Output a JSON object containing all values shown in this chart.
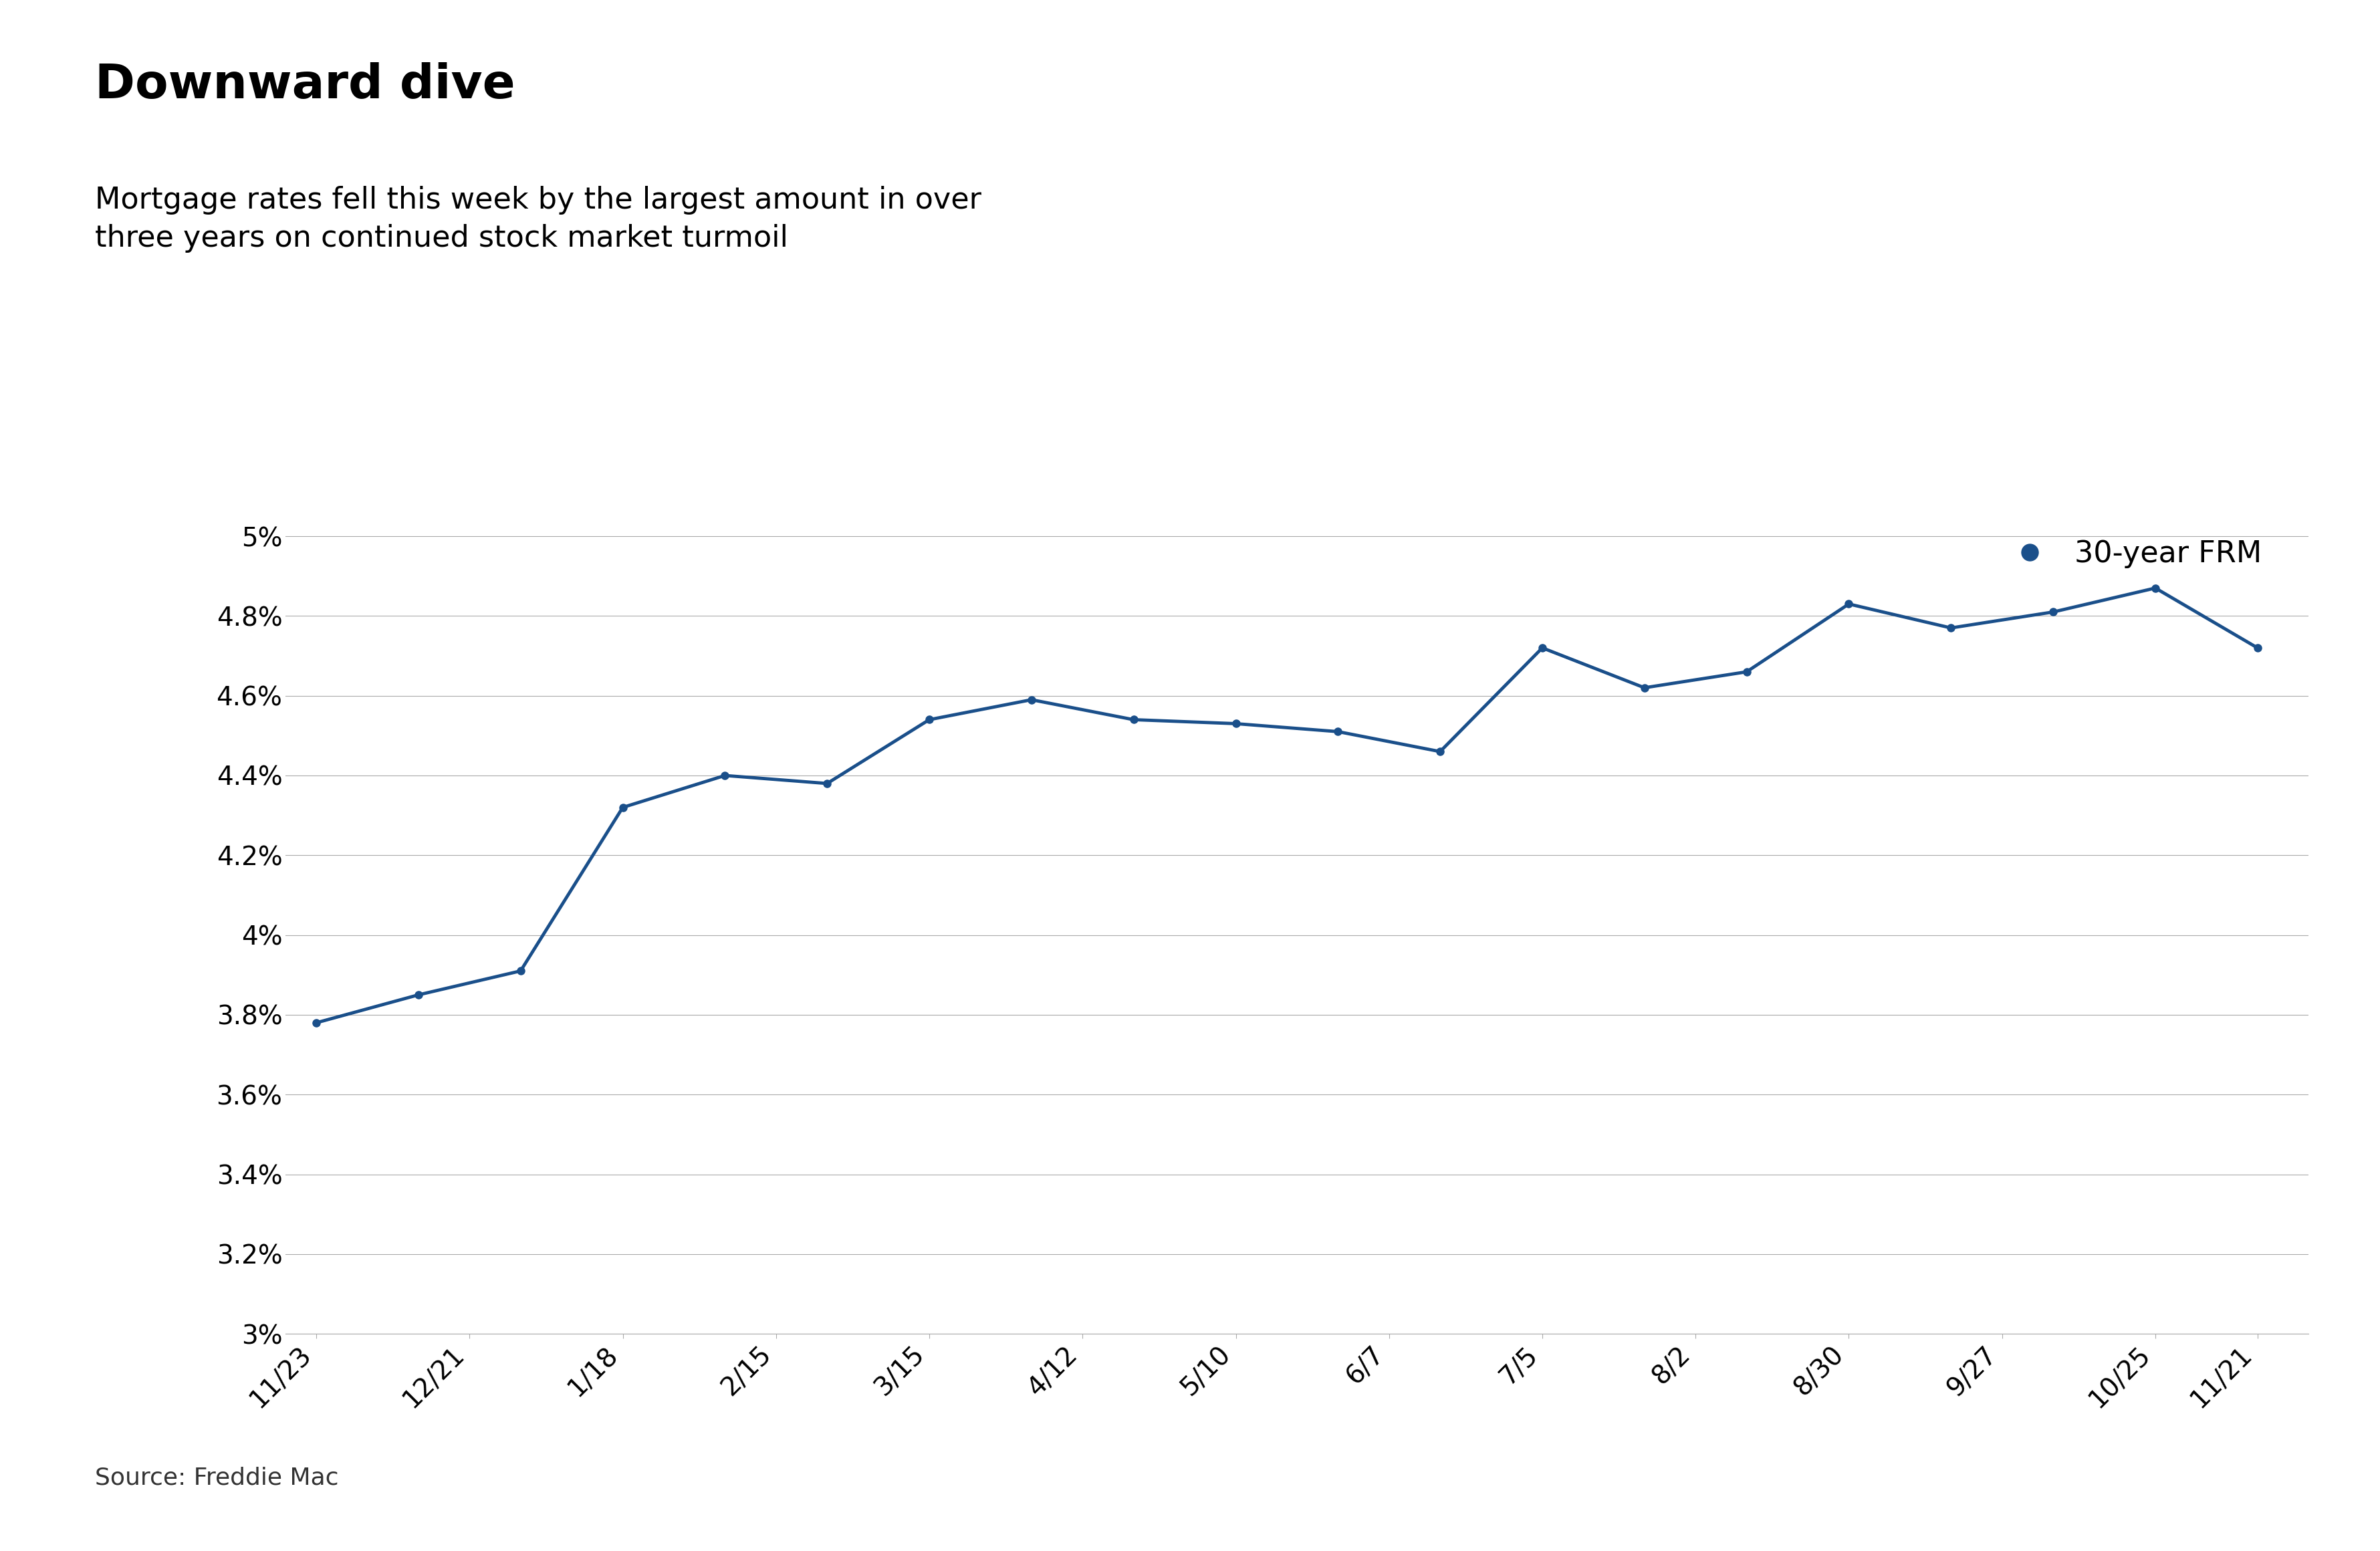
{
  "title": "Downward dive",
  "subtitle": "Mortgage rates fell this week by the largest amount in over\nthree years on continued stock market turmoil",
  "source": "Source: Freddie Mac",
  "legend_label": "30-year FRM",
  "line_color": "#1a4f8a",
  "background_color": "#ffffff",
  "x_labels": [
    "11/23",
    "12/21",
    "1/18",
    "2/15",
    "3/15",
    "4/12",
    "5/10",
    "6/7",
    "7/5",
    "8/2",
    "8/30",
    "9/27",
    "10/25",
    "11/21"
  ],
  "y_values": [
    3.78,
    3.85,
    3.91,
    4.32,
    4.4,
    4.38,
    4.54,
    4.59,
    4.54,
    4.53,
    4.51,
    4.46,
    4.72,
    4.62,
    4.66,
    4.83,
    4.77,
    4.81,
    4.87,
    4.72
  ],
  "x_positions": [
    0,
    1,
    2,
    3,
    4,
    5,
    6,
    7,
    8,
    9,
    10,
    11,
    12,
    13,
    14,
    15,
    16,
    17,
    18,
    19
  ],
  "x_tick_positions": [
    0,
    1.5,
    3,
    4.5,
    6,
    7.5,
    9,
    10.5,
    12,
    13.5,
    15,
    16.5,
    18,
    19
  ],
  "ylim": [
    3.0,
    5.1
  ],
  "yticks": [
    3.0,
    3.2,
    3.4,
    3.6,
    3.8,
    4.0,
    4.2,
    4.4,
    4.6,
    4.8,
    5.0
  ],
  "ytick_labels": [
    "3%",
    "3.2%",
    "3.4%",
    "3.6%",
    "3.8%",
    "4%",
    "4.2%",
    "4.4%",
    "4.6%",
    "4.8%",
    "5%"
  ],
  "grid_color": "#aaaaaa",
  "title_fontsize": 52,
  "subtitle_fontsize": 32,
  "tick_fontsize": 28,
  "source_fontsize": 26,
  "legend_fontsize": 32,
  "line_width": 3.5,
  "marker_size": 8
}
